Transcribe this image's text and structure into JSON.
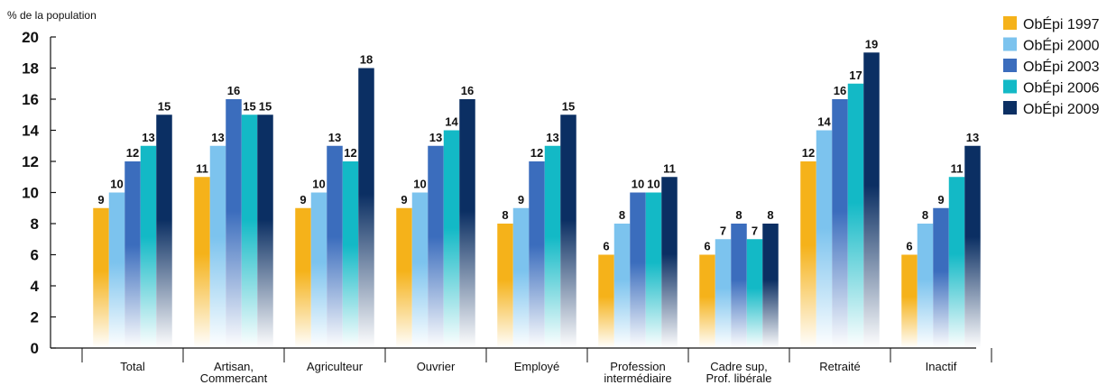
{
  "chart_data": {
    "type": "bar",
    "ylabel": "% de la population",
    "ylim": [
      0,
      20
    ],
    "yticks": [
      0,
      2,
      4,
      6,
      8,
      10,
      12,
      14,
      16,
      18,
      20
    ],
    "grid": false,
    "legend_position": "top-right",
    "categories": [
      [
        "Total"
      ],
      [
        "Artisan,",
        "Commercant"
      ],
      [
        "Agriculteur"
      ],
      [
        "Ouvrier"
      ],
      [
        "Employé"
      ],
      [
        "Profession",
        "intermédiaire"
      ],
      [
        "Cadre sup,",
        "Prof. libérale"
      ],
      [
        "Retraité"
      ],
      [
        "Inactif"
      ]
    ],
    "series": [
      {
        "name": "ObÉpi 1997",
        "color": "#f5b21a",
        "values": [
          9,
          11,
          9,
          9,
          8,
          6,
          6,
          12,
          6
        ]
      },
      {
        "name": "ObÉpi 2000",
        "color": "#7cc3ee",
        "values": [
          10,
          13,
          10,
          10,
          9,
          8,
          7,
          14,
          8
        ]
      },
      {
        "name": "ObÉpi 2003",
        "color": "#3b6dbd",
        "values": [
          12,
          16,
          13,
          13,
          12,
          10,
          8,
          16,
          9
        ]
      },
      {
        "name": "ObÉpi 2006",
        "color": "#13b9c6",
        "values": [
          13,
          15,
          12,
          14,
          13,
          10,
          7,
          17,
          11
        ]
      },
      {
        "name": "ObÉpi 2009",
        "color": "#0b2f63",
        "values": [
          15,
          15,
          18,
          16,
          15,
          11,
          8,
          19,
          13
        ]
      }
    ]
  }
}
